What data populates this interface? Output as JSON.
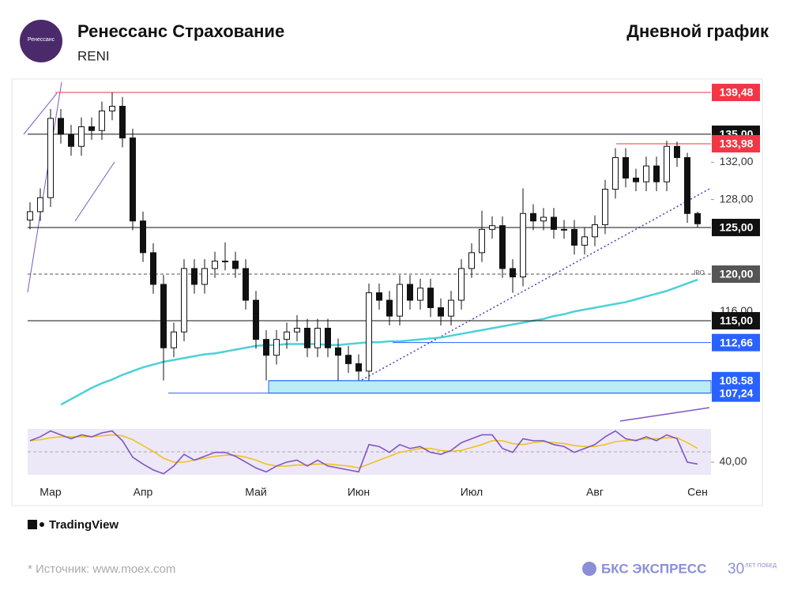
{
  "header": {
    "title": "Ренессанс Страхование",
    "ticker": "RENI",
    "chart_kind": "Дневной график",
    "logo_text": "Ренессанс"
  },
  "chart_data": [
    {
      "type": "candlestick",
      "categories": [
        null,
        null,
        "Мар",
        null,
        null,
        null,
        null,
        null,
        null,
        null,
        null,
        "Апр",
        null,
        null,
        null,
        null,
        null,
        null,
        null,
        null,
        null,
        null,
        "Май",
        null,
        null,
        null,
        null,
        null,
        null,
        null,
        null,
        null,
        "Июн",
        null,
        null,
        null,
        null,
        null,
        null,
        null,
        null,
        null,
        null,
        "Июл",
        null,
        null,
        null,
        null,
        null,
        null,
        null,
        null,
        null,
        null,
        null,
        "Авг",
        null,
        null,
        null,
        null,
        null,
        null,
        null,
        null,
        null,
        "Сен"
      ],
      "open": [
        125.8,
        126.7,
        128.2,
        136.7,
        135.0,
        133.7,
        135.8,
        135.4,
        137.5,
        138.0,
        134.6,
        125.7,
        122.3,
        118.9,
        112.1,
        113.8,
        120.6,
        118.9,
        120.6,
        121.4,
        121.4,
        120.6,
        117.2,
        113.0,
        111.3,
        113.0,
        113.8,
        114.2,
        112.1,
        114.2,
        112.1,
        111.3,
        110.4,
        109.6,
        118.0,
        117.2,
        115.5,
        118.9,
        117.2,
        118.5,
        116.4,
        115.5,
        117.2,
        120.6,
        122.3,
        124.8,
        125.2,
        120.6,
        119.7,
        126.5,
        125.7,
        126.1,
        124.8,
        124.8,
        123.1,
        124.0,
        125.3,
        129.1,
        132.5,
        130.3,
        129.9,
        131.6,
        129.9,
        133.7,
        132.5,
        126.5
      ],
      "high": [
        127.7,
        129.2,
        137.7,
        137.7,
        136.0,
        136.8,
        136.8,
        138.5,
        139.5,
        139.0,
        135.6,
        126.7,
        123.3,
        119.9,
        114.8,
        121.6,
        121.6,
        121.6,
        122.4,
        123.4,
        122.4,
        121.6,
        118.2,
        114.0,
        114.0,
        114.8,
        115.6,
        115.2,
        115.2,
        115.2,
        113.1,
        112.3,
        111.4,
        119.0,
        119.0,
        118.2,
        119.9,
        119.9,
        119.5,
        119.5,
        117.4,
        118.2,
        121.6,
        123.3,
        126.8,
        126.2,
        126.2,
        121.6,
        129.2,
        127.5,
        127.1,
        127.1,
        125.8,
        125.8,
        125.0,
        126.3,
        130.1,
        133.5,
        133.5,
        131.3,
        132.6,
        132.6,
        134.3,
        134.2,
        133.0,
        126.7
      ],
      "low": [
        124.8,
        125.7,
        127.2,
        134.0,
        132.7,
        132.7,
        134.4,
        134.4,
        136.5,
        133.6,
        124.7,
        121.3,
        117.9,
        108.6,
        111.1,
        112.8,
        117.9,
        117.9,
        119.6,
        120.4,
        119.6,
        116.2,
        112.0,
        108.6,
        110.3,
        112.0,
        112.8,
        111.1,
        111.1,
        111.1,
        108.6,
        109.4,
        108.6,
        108.6,
        116.2,
        114.5,
        114.5,
        116.2,
        116.2,
        115.4,
        114.5,
        114.5,
        116.2,
        119.6,
        121.3,
        123.8,
        119.6,
        118.0,
        118.7,
        124.7,
        124.7,
        123.8,
        123.8,
        122.1,
        122.1,
        123.0,
        124.3,
        128.1,
        129.3,
        128.9,
        128.9,
        128.9,
        128.9,
        131.5,
        125.5,
        125.0
      ],
      "close": [
        126.7,
        128.2,
        136.7,
        135.0,
        133.7,
        135.8,
        135.4,
        137.5,
        138.0,
        134.6,
        125.7,
        122.3,
        118.9,
        112.1,
        113.8,
        120.6,
        118.9,
        120.6,
        121.4,
        121.4,
        120.6,
        117.2,
        113.0,
        111.3,
        113.0,
        113.8,
        114.2,
        112.1,
        114.2,
        112.1,
        111.3,
        110.4,
        109.6,
        118.0,
        117.2,
        115.5,
        118.9,
        117.2,
        118.5,
        116.4,
        115.5,
        117.2,
        120.6,
        122.3,
        124.8,
        125.2,
        120.6,
        119.7,
        126.5,
        125.7,
        126.1,
        124.8,
        124.8,
        123.1,
        124.0,
        125.3,
        129.1,
        132.5,
        130.3,
        129.9,
        131.6,
        129.9,
        133.7,
        132.5,
        126.5,
        125.4
      ],
      "up_color": "#ffffff",
      "down_color": "#111111",
      "ma": {
        "color": "#4dd0d8",
        "values": [
          null,
          null,
          null,
          106.0,
          106.6,
          107.2,
          107.8,
          108.3,
          108.7,
          109.2,
          109.6,
          110.0,
          110.3,
          110.6,
          110.8,
          111.0,
          111.2,
          111.4,
          111.5,
          111.7,
          111.9,
          112.1,
          112.3,
          112.4,
          112.4,
          112.5,
          112.5,
          112.5,
          112.5,
          112.4,
          112.4,
          112.5,
          112.6,
          112.7,
          112.7,
          112.8,
          112.8,
          112.9,
          113.0,
          113.1,
          113.2,
          113.4,
          113.6,
          113.8,
          114.0,
          114.2,
          114.4,
          114.6,
          114.8,
          115.0,
          115.2,
          115.5,
          115.7,
          116.0,
          116.2,
          116.4,
          116.6,
          116.8,
          117.0,
          117.3,
          117.6,
          117.9,
          118.2,
          118.6,
          119.0,
          119.4
        ]
      },
      "ylim": [
        104.5,
        140.5
      ],
      "yticks": [
        {
          "value": 116,
          "label": "116,00"
        },
        {
          "value": 128,
          "label": "128,00"
        },
        {
          "value": 132,
          "label": "132,00"
        }
      ],
      "levels": [
        {
          "value": 139.48,
          "label": "139,48",
          "color": "#f23645"
        },
        {
          "value": 135,
          "label": "135,00",
          "color": "#111111"
        },
        {
          "value": 133.98,
          "label": "133,98",
          "color": "#f23645"
        },
        {
          "value": 125,
          "label": "125,00",
          "color": "#111111"
        },
        {
          "value": 120,
          "label": "120,00",
          "color": "#555555",
          "dashed": true
        },
        {
          "value": 115,
          "label": "115,00",
          "color": "#111111"
        },
        {
          "value": 112.66,
          "label": "112,66",
          "color": "#2962ff"
        },
        {
          "value": 108.58,
          "label": "108,58",
          "color": "#2962ff"
        },
        {
          "value": 107.24,
          "label": "107,24",
          "color": "#2962ff"
        }
      ],
      "ipo_label": "IPO"
    },
    {
      "type": "line",
      "series": [
        {
          "color": "#7e57c2",
          "values": [
            62,
            66,
            72,
            68,
            64,
            68,
            66,
            70,
            72,
            62,
            45,
            38,
            32,
            28,
            36,
            48,
            42,
            46,
            50,
            50,
            46,
            40,
            34,
            30,
            36,
            40,
            42,
            36,
            42,
            36,
            34,
            32,
            30,
            58,
            56,
            50,
            58,
            54,
            56,
            50,
            48,
            52,
            60,
            64,
            68,
            68,
            54,
            50,
            64,
            62,
            62,
            58,
            56,
            50,
            54,
            58,
            66,
            72,
            64,
            62,
            66,
            62,
            68,
            64,
            40,
            38
          ]
        },
        {
          "color": "#f2c21b",
          "values": [
            62,
            63,
            65,
            66,
            66,
            66,
            66,
            67,
            68,
            67,
            63,
            57,
            51,
            44,
            40,
            40,
            42,
            44,
            46,
            47,
            47,
            45,
            42,
            38,
            36,
            36,
            37,
            37,
            38,
            38,
            37,
            36,
            34,
            38,
            42,
            46,
            50,
            52,
            54,
            54,
            52,
            51,
            52,
            55,
            58,
            62,
            62,
            59,
            58,
            60,
            61,
            60,
            59,
            57,
            56,
            56,
            58,
            61,
            62,
            63,
            64,
            64,
            65,
            65,
            60,
            54
          ]
        }
      ],
      "ylim": [
        26.2,
        76.5
      ],
      "yticks": [
        {
          "value": 40,
          "label": "40,00"
        }
      ]
    }
  ],
  "footer": {
    "brand": "TradingView",
    "source": "* Источник: www.moex.com",
    "company": "БКС ЭКСПРЕСС",
    "anniversary": "30",
    "anniversary_text": "ЛЕТ ПОБЕД"
  }
}
